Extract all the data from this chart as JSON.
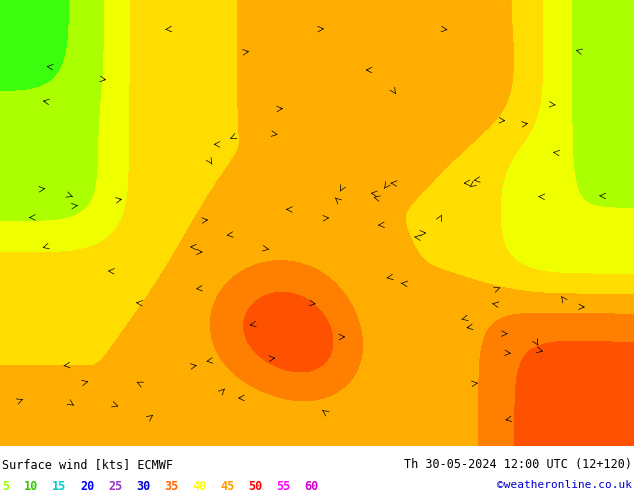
{
  "title_left": "Surface wind [kts] ECMWF",
  "title_right": "Th 30-05-2024 12:00 UTC (12+120)",
  "credit": "©weatheronline.co.uk",
  "legend_values": [
    5,
    10,
    15,
    20,
    25,
    30,
    35,
    40,
    45,
    50,
    55,
    60
  ],
  "legend_colors": [
    "#96ff96",
    "#32ff00",
    "#ffff00",
    "#ffcc00",
    "#ff9900",
    "#ff6600",
    "#ff0000",
    "#cc0000",
    "#990000",
    "#ff00ff",
    "#cc00cc",
    "#9900cc"
  ],
  "colormap_colors": [
    "#96ff96",
    "#32ff00",
    "#c8ff00",
    "#ffff00",
    "#ffcc00",
    "#ff9900",
    "#ff6600",
    "#ff3300",
    "#ff0000",
    "#cc0000",
    "#990000",
    "#ff00ff"
  ],
  "background_color": "#ffffff",
  "map_bg": "#ffff00",
  "border_color": "#000000",
  "fig_width": 6.34,
  "fig_height": 4.9,
  "dpi": 100,
  "bottom_bar_color": "#c8c8c8"
}
